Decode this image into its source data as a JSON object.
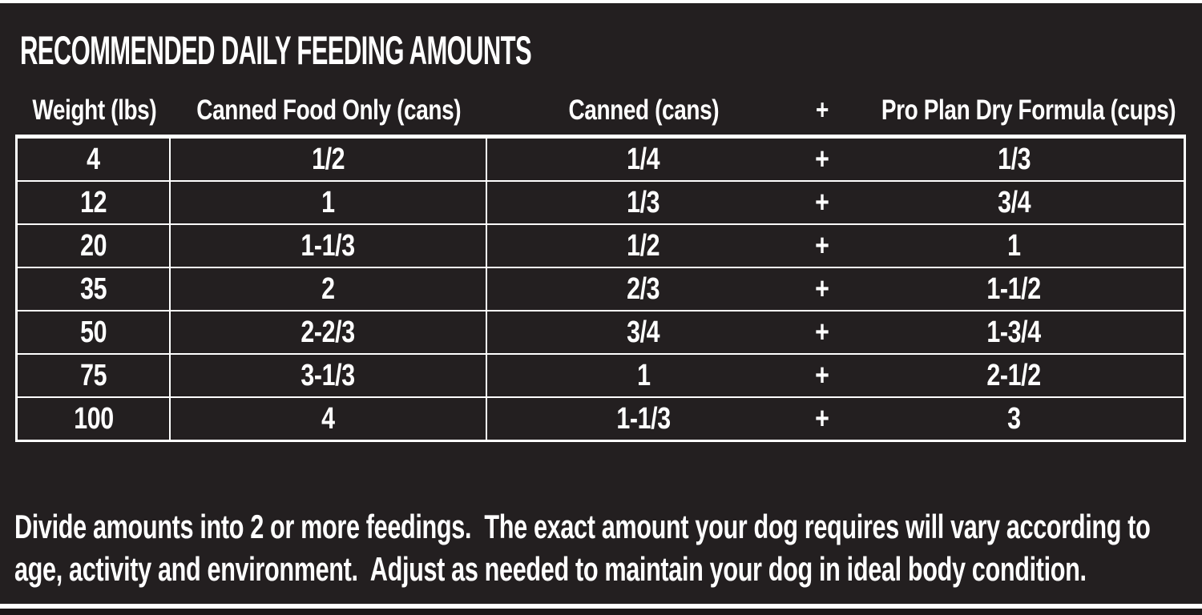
{
  "title": "RECOMMENDED DAILY FEEDING AMOUNTS",
  "table": {
    "columns": [
      "Weight (lbs)",
      "Canned Food Only (cans)",
      "Canned (cans)",
      "+",
      "Pro Plan Dry Formula (cups)"
    ],
    "rows": [
      {
        "weight": "4",
        "canned_only": "1/2",
        "canned": "1/4",
        "plus": "+",
        "dry": "1/3"
      },
      {
        "weight": "12",
        "canned_only": "1",
        "canned": "1/3",
        "plus": "+",
        "dry": "3/4"
      },
      {
        "weight": "20",
        "canned_only": "1-1/3",
        "canned": "1/2",
        "plus": "+",
        "dry": "1"
      },
      {
        "weight": "35",
        "canned_only": "2",
        "canned": "2/3",
        "plus": "+",
        "dry": "1-1/2"
      },
      {
        "weight": "50",
        "canned_only": "2-2/3",
        "canned": "3/4",
        "plus": "+",
        "dry": "1-3/4"
      },
      {
        "weight": "75",
        "canned_only": "3-1/3",
        "canned": "1",
        "plus": "+",
        "dry": "2-1/2"
      },
      {
        "weight": "100",
        "canned_only": "4",
        "canned": "1-1/3",
        "plus": "+",
        "dry": "3"
      }
    ]
  },
  "footer": {
    "lines": [
      "Divide amounts into 2 or more feedings.  The exact amount your dog requires will vary according to",
      "age, activity and environment.  Adjust as needed to maintain your dog in ideal body condition."
    ]
  },
  "colors": {
    "background": "#231f20",
    "foreground": "#ffffff"
  },
  "chart_data": {
    "type": "table",
    "title": "RECOMMENDED DAILY FEEDING AMOUNTS",
    "columns": [
      "Weight (lbs)",
      "Canned Food Only (cans)",
      "Canned (cans)",
      "+",
      "Pro Plan Dry Formula (cups)"
    ],
    "rows": [
      [
        "4",
        "1/2",
        "1/4",
        "+",
        "1/3"
      ],
      [
        "12",
        "1",
        "1/3",
        "+",
        "3/4"
      ],
      [
        "20",
        "1-1/3",
        "1/2",
        "+",
        "1"
      ],
      [
        "35",
        "2",
        "2/3",
        "+",
        "1-1/2"
      ],
      [
        "50",
        "2-2/3",
        "3/4",
        "+",
        "1-3/4"
      ],
      [
        "75",
        "3-1/3",
        "1",
        "+",
        "2-1/2"
      ],
      [
        "100",
        "4",
        "1-1/3",
        "+",
        "3"
      ]
    ],
    "note": "Divide amounts into 2 or more feedings.  The exact amount your dog requires will vary according to age, activity and environment.  Adjust as needed to maintain your dog in ideal body condition."
  }
}
